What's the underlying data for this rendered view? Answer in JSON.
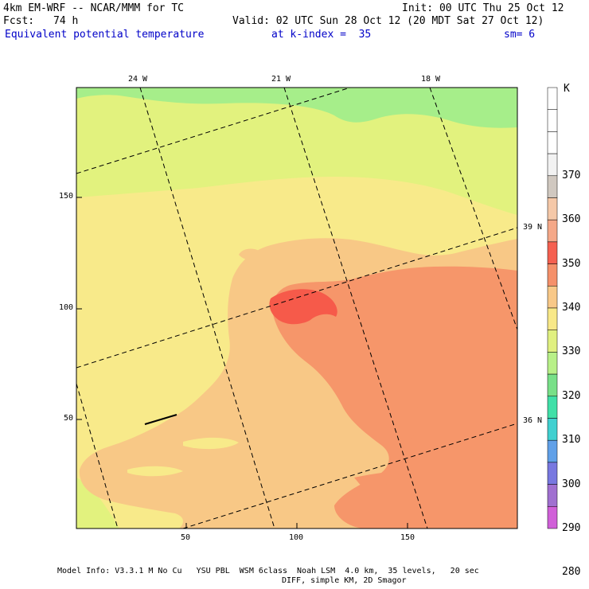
{
  "header": {
    "model": "4km EM-WRF -- NCAR/MMM for TC",
    "init": "Init: 00 UTC Thu 25 Oct 12",
    "fcst_label": "Fcst:",
    "fcst_value": "74 h",
    "valid": "Valid: 02 UTC Sun 28 Oct 12 (20 MDT Sat 27 Oct 12)",
    "field": "Equivalent potential temperature",
    "level": "at k-index =  35",
    "smoothing": "sm= 6"
  },
  "axes": {
    "left_ticks": [
      "150",
      "100",
      "50"
    ],
    "bottom_ticks": [
      "50",
      "100",
      "150"
    ],
    "top_lon": [
      "24 W",
      "21 W",
      "18 W"
    ],
    "right_lat": [
      "39 N",
      "36 N"
    ]
  },
  "colorbar": {
    "unit": "K",
    "labels": [
      "370",
      "360",
      "350",
      "340",
      "330",
      "320",
      "310",
      "300",
      "290",
      "280"
    ],
    "colors": [
      "#ffffff",
      "#ffffff",
      "#ffffff",
      "#f2f2f2",
      "#d0c8c0",
      "#f5c8a8",
      "#f5a888",
      "#f56050",
      "#f5906a",
      "#f8c888",
      "#f8e888",
      "#e0f080",
      "#b8f088",
      "#78e088",
      "#40e0a8",
      "#40d0d0",
      "#60a0e8",
      "#7878e0",
      "#a070d0",
      "#d060d8"
    ]
  },
  "colors": {
    "c310": "#a6ee8a",
    "c320": "#e2f27e",
    "c325": "#f8ea8a",
    "c330": "#f8c886",
    "c335": "#f6966a",
    "c340": "#f65a4a"
  },
  "footer": {
    "line1": "Model Info: V3.3.1 M No Cu   YSU PBL  WSM 6class  Noah LSM  4.0 km,  35 levels,   20 sec",
    "line2": "DIFF, simple KM, 2D Smagor"
  }
}
